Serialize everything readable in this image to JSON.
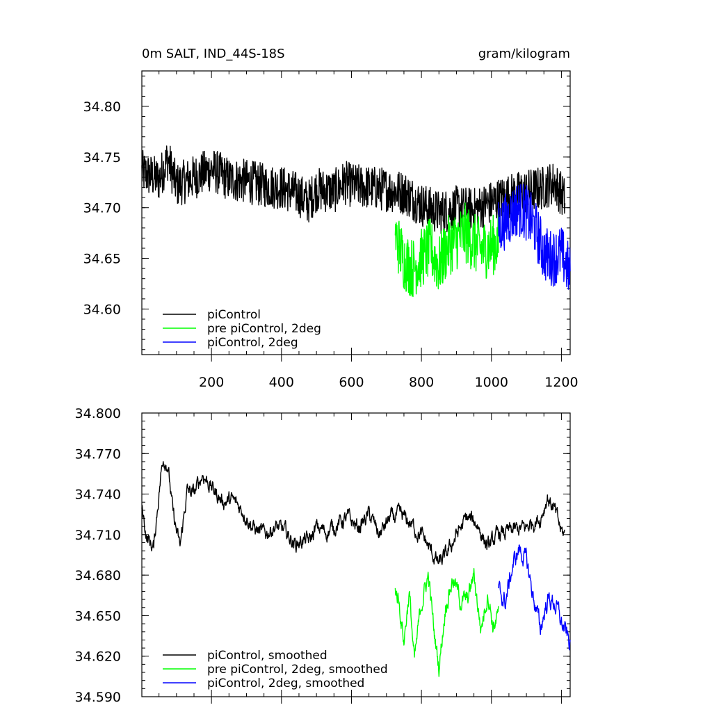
{
  "chart_data": [
    {
      "type": "line",
      "title": "0m SALT, IND_44S-18S",
      "units": "gram/kilogram",
      "xlabel": "",
      "ylabel": "",
      "xlim": [
        1,
        1225
      ],
      "ylim": [
        34.555,
        34.835
      ],
      "xticks": [
        200,
        400,
        600,
        800,
        1000,
        1200
      ],
      "xtick_labels": [
        "200",
        "400",
        "600",
        "800",
        "1000",
        "1200"
      ],
      "yticks": [
        34.6,
        34.65,
        34.7,
        34.75,
        34.8
      ],
      "ytick_labels": [
        "34.60",
        "34.65",
        "34.70",
        "34.75",
        "34.80"
      ],
      "legend": [
        "piControl",
        "pre piControl, 2deg",
        "piControl, 2deg"
      ],
      "legend_placement": "bottom-left",
      "series": [
        {
          "name": "piControl",
          "color": "#000000",
          "x": [
            1,
            50,
            75,
            100,
            150,
            200,
            250,
            300,
            350,
            400,
            450,
            475,
            500,
            550,
            580,
            600,
            650,
            700,
            750,
            800,
            850,
            900,
            950,
            1000,
            1050,
            1100,
            1150,
            1180,
            1210
          ],
          "values": [
            34.735,
            34.728,
            34.748,
            34.722,
            34.73,
            34.738,
            34.728,
            34.726,
            34.722,
            34.72,
            34.713,
            34.705,
            34.718,
            34.716,
            34.725,
            34.722,
            34.72,
            34.718,
            34.715,
            34.703,
            34.695,
            34.7,
            34.698,
            34.705,
            34.712,
            34.716,
            34.72,
            34.725,
            34.708
          ],
          "noise": 0.022
        },
        {
          "name": "pre piControl, 2deg",
          "color": "#00ff00",
          "x": [
            725,
            750,
            775,
            800,
            825,
            850,
            875,
            900,
            925,
            950,
            975,
            1000,
            1020
          ],
          "values": [
            34.672,
            34.648,
            34.64,
            34.65,
            34.66,
            34.642,
            34.662,
            34.668,
            34.675,
            34.665,
            34.658,
            34.663,
            34.665
          ],
          "noise": 0.03
        },
        {
          "name": "piControl, 2deg",
          "color": "#0000ff",
          "x": [
            1020,
            1050,
            1075,
            1100,
            1125,
            1150,
            1175,
            1200,
            1225
          ],
          "values": [
            34.68,
            34.69,
            34.7,
            34.695,
            34.68,
            34.655,
            34.65,
            34.655,
            34.635
          ],
          "noise": 0.028
        }
      ]
    },
    {
      "type": "line",
      "title": "",
      "xlabel": "",
      "ylabel": "",
      "xlim": [
        1,
        1225
      ],
      "ylim": [
        34.59,
        34.8
      ],
      "xticks": [
        200,
        400,
        600,
        800,
        1000,
        1200
      ],
      "xtick_labels": [
        "",
        "",
        "",
        "",
        "",
        ""
      ],
      "yticks": [
        34.59,
        34.62,
        34.65,
        34.68,
        34.71,
        34.74,
        34.77,
        34.8
      ],
      "ytick_labels": [
        "34.590",
        "34.620",
        "34.650",
        "34.680",
        "34.710",
        "34.740",
        "34.770",
        "34.800"
      ],
      "legend": [
        "piControl, smoothed",
        "pre piControl, 2deg, smoothed",
        "piControl, 2deg, smoothed"
      ],
      "legend_placement": "bottom-left",
      "series": [
        {
          "name": "piControl, smoothed",
          "color": "#000000",
          "x": [
            1,
            15,
            35,
            50,
            62,
            75,
            90,
            110,
            130,
            150,
            175,
            200,
            230,
            260,
            290,
            320,
            350,
            380,
            410,
            440,
            460,
            480,
            500,
            530,
            560,
            590,
            620,
            650,
            680,
            710,
            740,
            770,
            790,
            810,
            830,
            850,
            870,
            900,
            930,
            960,
            990,
            1020,
            1050,
            1080,
            1100,
            1120,
            1140,
            1160,
            1180,
            1200,
            1210
          ],
          "values": [
            34.731,
            34.708,
            34.7,
            34.742,
            34.768,
            34.762,
            34.725,
            34.7,
            34.742,
            34.74,
            34.755,
            34.745,
            34.735,
            34.735,
            34.728,
            34.715,
            34.71,
            34.716,
            34.712,
            34.703,
            34.706,
            34.705,
            34.715,
            34.712,
            34.718,
            34.722,
            34.715,
            34.725,
            34.71,
            34.722,
            34.724,
            34.718,
            34.712,
            34.706,
            34.696,
            34.688,
            34.694,
            34.71,
            34.722,
            34.718,
            34.7,
            34.71,
            34.712,
            34.714,
            34.715,
            34.72,
            34.722,
            34.738,
            34.728,
            34.712,
            34.71
          ],
          "noise": 0.018
        },
        {
          "name": "pre piControl, 2deg, smoothed",
          "color": "#00ff00",
          "x": [
            725,
            735,
            750,
            765,
            780,
            800,
            820,
            835,
            850,
            870,
            890,
            910,
            930,
            950,
            970,
            990,
            1005,
            1020
          ],
          "values": [
            34.672,
            34.662,
            34.632,
            34.668,
            34.615,
            34.66,
            34.68,
            34.64,
            34.612,
            34.66,
            34.678,
            34.662,
            34.66,
            34.68,
            34.64,
            34.668,
            34.642,
            34.652
          ],
          "noise": 0.022
        },
        {
          "name": "piControl, 2deg, smoothed",
          "color": "#0000ff",
          "x": [
            1020,
            1040,
            1060,
            1080,
            1100,
            1120,
            1140,
            1160,
            1180,
            1200,
            1225
          ],
          "values": [
            34.668,
            34.66,
            34.686,
            34.7,
            34.69,
            34.664,
            34.64,
            34.662,
            34.66,
            34.645,
            34.628
          ],
          "noise": 0.022
        }
      ]
    }
  ]
}
